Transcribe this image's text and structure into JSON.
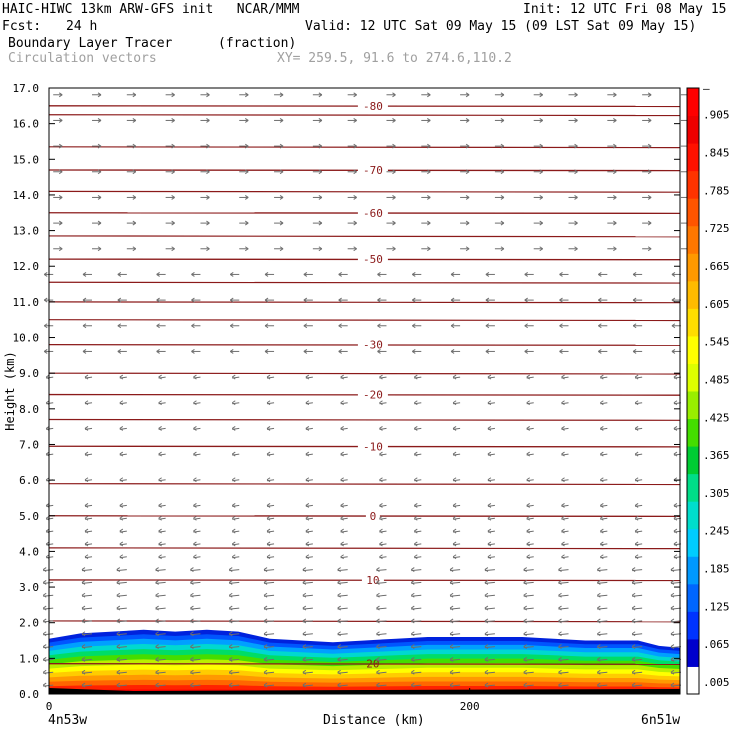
{
  "header": {
    "model": "HAIC-HIWC 13km ARW-GFS init   NCAR/MMM",
    "init": "Init: 12 UTC Fri 08 May 15",
    "fcst_label": "Fcst:",
    "fcst_value": "24 h",
    "valid": "Valid: 12 UTC Sat 09 May 15 (09 LST Sat 09 May 15)",
    "field_name": "Boundary Layer Tracer",
    "field_units": "(fraction)",
    "overlay_name": "Circulation vectors",
    "xsection": "XY= 259.5, 91.6 to 274.6,110.2"
  },
  "axes": {
    "ylabel": "Height (km)",
    "xlabel": "Distance (km)",
    "left_end": "4n53w",
    "right_end": "6n51w"
  },
  "colors": {
    "contour": "#8b1a1a",
    "vector": "#6e6e6e",
    "colorbar": [
      "#ffffff",
      "#0000cc",
      "#0033ff",
      "#0066ff",
      "#0099ff",
      "#00ccff",
      "#00e5cc",
      "#00dd88",
      "#00cc33",
      "#33dd00",
      "#88ee00",
      "#ccff00",
      "#ffff00",
      "#ffdd00",
      "#ffbb00",
      "#ff9900",
      "#ff7700",
      "#ff5500",
      "#ff3300",
      "#ff1100",
      "#ee0000",
      "#ff0000"
    ]
  },
  "chart_data": {
    "type": "heatmap",
    "title": "Boundary Layer Tracer",
    "xlabel": "Distance (km)",
    "ylabel": "Height (km)",
    "xlim": [
      0,
      300
    ],
    "ylim": [
      0,
      17
    ],
    "yticks": [
      "0.0",
      "1.0",
      "2.0",
      "3.0",
      "4.0",
      "5.0",
      "6.0",
      "7.0",
      "8.0",
      "9.0",
      "10.0",
      "11.0",
      "12.0",
      "13.0",
      "14.0",
      "15.0",
      "16.0",
      "17.0"
    ],
    "xticks": [
      "0",
      "200"
    ],
    "colorbar_labels": [
      ".005",
      ".065",
      ".125",
      ".185",
      ".245",
      ".305",
      ".365",
      ".425",
      ".485",
      ".545",
      ".605",
      ".665",
      ".725",
      ".785",
      ".845",
      ".905",
      "–"
    ],
    "tracer_top_km": [
      1.55,
      1.7,
      1.75,
      1.8,
      1.75,
      1.8,
      1.75,
      1.55,
      1.5,
      1.45,
      1.5,
      1.55,
      1.6,
      1.6,
      1.6,
      1.6,
      1.55,
      1.5,
      1.5,
      1.5,
      1.35,
      1.3
    ],
    "tracer_x_km": [
      0,
      15,
      30,
      45,
      60,
      75,
      90,
      105,
      120,
      135,
      150,
      165,
      180,
      195,
      210,
      225,
      240,
      255,
      270,
      280,
      290,
      300
    ],
    "temperature_contours": [
      {
        "label": "20",
        "y": 0.85
      },
      {
        "label": "10",
        "y": 3.2
      },
      {
        "label": "0",
        "y": 5.0
      },
      {
        "label": "-10",
        "y": 6.95
      },
      {
        "label": "-20",
        "y": 8.4
      },
      {
        "label": "-30",
        "y": 9.8
      },
      {
        "label": "-50",
        "y": 12.2
      },
      {
        "label": "-60",
        "y": 13.5
      },
      {
        "label": "-70",
        "y": 14.7
      },
      {
        "label": "-80",
        "y": 16.5
      }
    ],
    "unlabeled_contours_km": [
      2.05,
      4.1,
      5.9,
      7.7,
      9.0,
      10.5,
      11.0,
      11.55,
      12.85,
      14.1,
      15.35,
      16.25
    ],
    "grid": false,
    "legend_position": "right"
  }
}
